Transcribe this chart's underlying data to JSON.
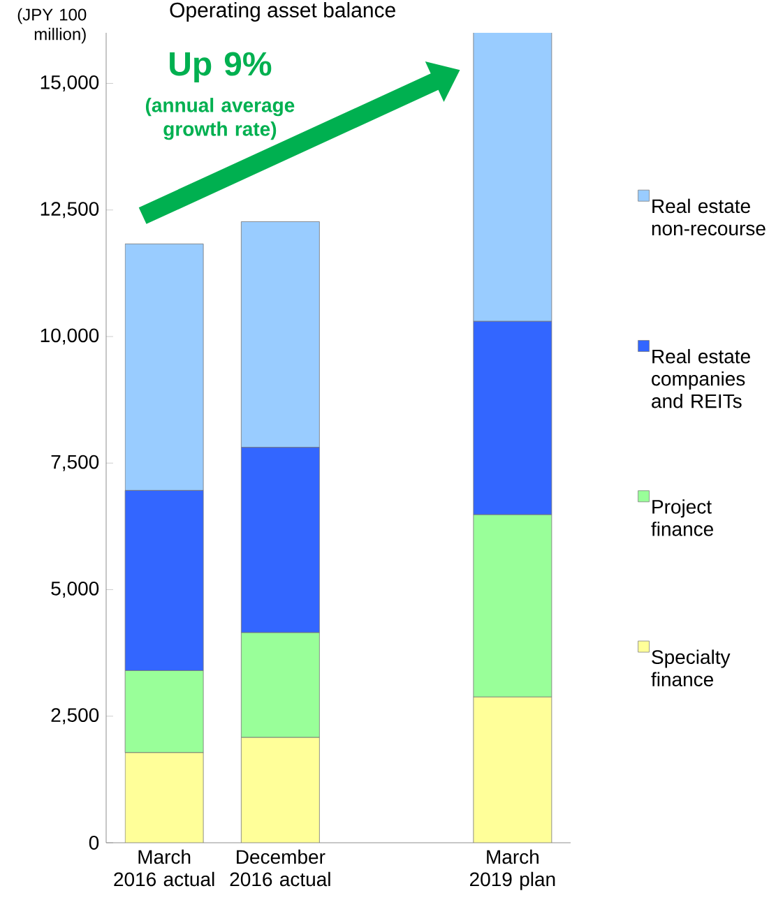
{
  "chart_data": {
    "type": "bar",
    "stacked": true,
    "title": "Operating asset balance",
    "ylabel": "(JPY 100 million)",
    "categories": [
      "March 2016 actual",
      "December 2016 actual",
      null,
      "March 2019 plan"
    ],
    "series": [
      {
        "name": "Specialty finance",
        "color": "#ffff99",
        "values": [
          1780,
          2080,
          null,
          2880
        ]
      },
      {
        "name": "Project finance",
        "color": "#99ff99",
        "values": [
          1620,
          2070,
          null,
          3600
        ]
      },
      {
        "name": "Real estate companies and REITs",
        "color": "#3366ff",
        "values": [
          3560,
          3660,
          null,
          3820
        ]
      },
      {
        "name": "Real estate non-recourse",
        "color": "#99ccff",
        "values": [
          4870,
          4460,
          null,
          5730
        ]
      }
    ],
    "ylim": [
      0,
      16000
    ],
    "yticks": [
      0,
      {
        "value": 2500,
        "label": "2,500"
      },
      {
        "value": 5000,
        "label": "5,000"
      },
      {
        "value": 7500,
        "label": "7,500"
      },
      {
        "value": 10000,
        "label": "10,000"
      },
      {
        "value": 12500,
        "label": "12,500"
      },
      {
        "value": 15000,
        "label": "15,000"
      }
    ],
    "annotations": [
      "Up 9%",
      "(annual average growth rate)"
    ],
    "legend": "right",
    "grid": false
  }
}
